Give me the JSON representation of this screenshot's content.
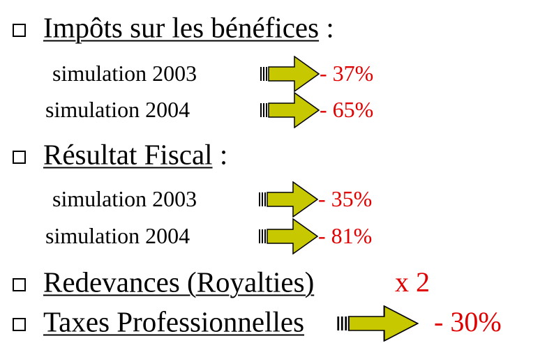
{
  "items": [
    {
      "title": "Impôts sur les bénéfices",
      "separator": ":",
      "rows": [
        {
          "label": "simulation 2003",
          "value": "- 37%"
        },
        {
          "label": "simulation 2004",
          "value": "- 65%"
        }
      ]
    },
    {
      "title": "Résultat Fiscal",
      "separator": ":",
      "rows": [
        {
          "label": "simulation 2003",
          "value": "- 35%"
        },
        {
          "label": "simulation 2004",
          "value": "- 81%"
        }
      ]
    },
    {
      "title": "Redevances (Royalties)",
      "value": "x 2"
    },
    {
      "title": "Taxes Professionnelles",
      "value": "- 30%"
    }
  ]
}
